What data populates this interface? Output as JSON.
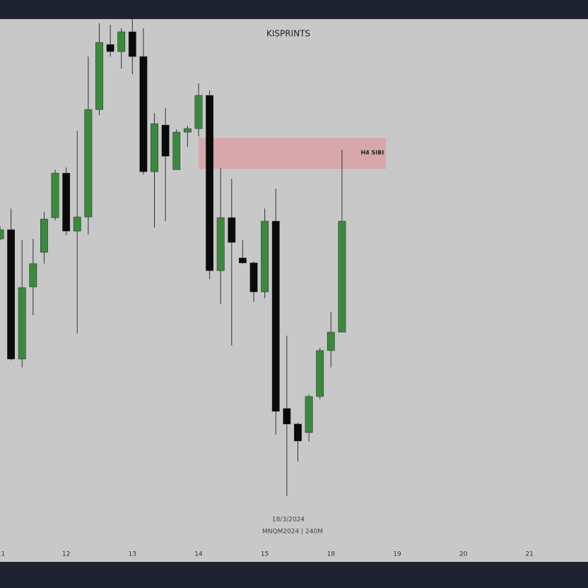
{
  "chart_data": {
    "type": "candlestick",
    "title": "KISPRINTS",
    "date_label": "18/3/2024",
    "symbol_label": "MNQM2024 | 240M",
    "up_color": "#3a8a3e",
    "down_color": "#0a0a0a",
    "zone": {
      "label": "H4 SIBI",
      "color": "#d9a0a4",
      "x": [
        18,
        35
      ],
      "y": [
        556,
        600
      ]
    },
    "x": [
      0,
      1,
      2,
      3,
      4,
      5,
      6,
      7,
      8,
      9,
      10,
      11,
      12,
      13,
      14,
      15,
      16,
      17,
      18,
      19,
      20,
      21,
      22,
      23,
      24,
      25,
      26,
      27,
      28,
      29,
      30,
      31
    ],
    "open": [
      457,
      470,
      287,
      389,
      438,
      487,
      550,
      468,
      488,
      640,
      732,
      722,
      750,
      715,
      552,
      618,
      555,
      608,
      613,
      660,
      412,
      487,
      430,
      423,
      382,
      482,
      217,
      195,
      183,
      234,
      299,
      325
    ],
    "high": [
      475,
      500,
      455,
      457,
      495,
      555,
      558,
      610,
      715,
      762,
      760,
      755,
      768,
      755,
      635,
      642,
      612,
      617,
      677,
      667,
      557,
      542,
      455,
      425,
      500,
      528,
      320,
      197,
      237,
      303,
      354,
      583
    ],
    "low": [
      455,
      285,
      275,
      349,
      422,
      483,
      462,
      323,
      463,
      632,
      715,
      698,
      690,
      548,
      473,
      482,
      555,
      587,
      602,
      400,
      365,
      306,
      422,
      368,
      373,
      180,
      93,
      142,
      170,
      230,
      275,
      325
    ],
    "close": [
      470,
      287,
      388,
      422,
      485,
      550,
      468,
      488,
      640,
      735,
      722,
      750,
      715,
      552,
      620,
      574,
      608,
      613,
      660,
      412,
      487,
      452,
      423,
      382,
      482,
      213,
      195,
      171,
      234,
      299,
      325,
      482
    ],
    "xlim": [
      0,
      53.3
    ],
    "ylim": [
      0,
      768
    ],
    "xticks": [
      {
        "value": 0.1,
        "label": "11"
      },
      {
        "value": 6,
        "label": "12"
      },
      {
        "value": 12,
        "label": "13"
      },
      {
        "value": 18,
        "label": "14"
      },
      {
        "value": 24,
        "label": "15"
      },
      {
        "value": 30,
        "label": "18"
      },
      {
        "value": 36,
        "label": "19"
      },
      {
        "value": 42,
        "label": "20"
      },
      {
        "value": 48,
        "label": "21"
      }
    ]
  }
}
